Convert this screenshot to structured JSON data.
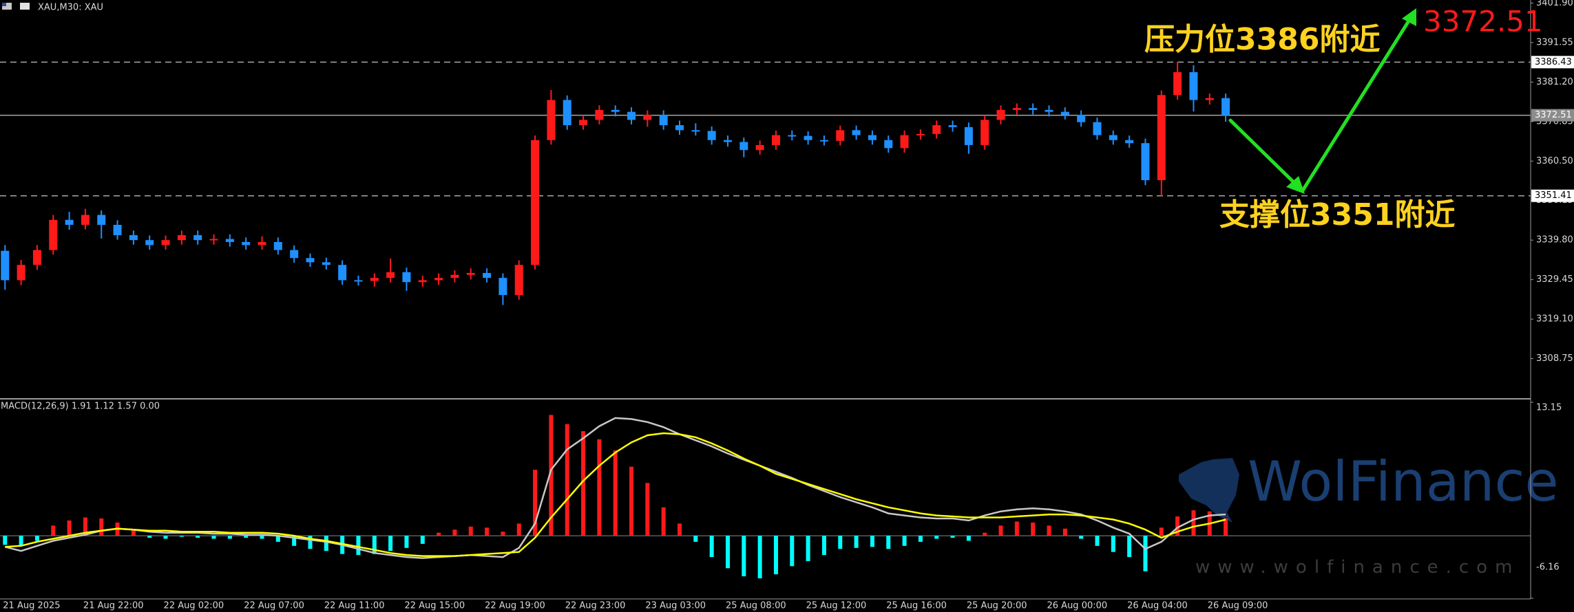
{
  "chart_data": [
    {
      "type": "candlestick",
      "title": "XAU,M30: XAU",
      "categories": [
        "21 Aug 2025",
        null,
        null,
        null,
        null,
        "21 Aug 22:00",
        null,
        null,
        null,
        null,
        "22 Aug 02:00",
        null,
        null,
        null,
        null,
        "22 Aug 07:00",
        null,
        null,
        null,
        null,
        "22 Aug 11:00",
        null,
        null,
        null,
        null,
        "22 Aug 15:00",
        null,
        null,
        null,
        null,
        "22 Aug 19:00",
        null,
        null,
        null,
        null,
        "22 Aug 23:00",
        null,
        null,
        null,
        null,
        "23 Aug 03:00",
        null,
        null,
        null,
        null,
        "25 Aug 08:00",
        null,
        null,
        null,
        null,
        "25 Aug 12:00",
        null,
        null,
        null,
        null,
        "25 Aug 16:00",
        null,
        null,
        null,
        null,
        "25 Aug 20:00",
        null,
        null,
        null,
        null,
        "26 Aug 00:00",
        null,
        null,
        null,
        null,
        "26 Aug 04:00",
        null,
        null,
        null,
        null,
        "26 Aug 09:00",
        null
      ],
      "open": [
        3337.0,
        3329.3,
        3333.3,
        3337.2,
        3345.1,
        3343.8,
        3346.4,
        3343.8,
        3341.1,
        3339.8,
        3338.5,
        3339.8,
        3341.1,
        3339.8,
        3340.1,
        3339.3,
        3338.5,
        3339.3,
        3337.2,
        3335.1,
        3334.0,
        3333.3,
        3329.3,
        3329.1,
        3329.9,
        3331.4,
        3328.8,
        3329.3,
        3329.9,
        3330.7,
        3331.2,
        3329.9,
        3325.4,
        3333.3,
        3366.0,
        3376.5,
        3369.9,
        3371.3,
        3373.9,
        3373.4,
        3371.3,
        3372.6,
        3369.9,
        3368.6,
        3368.4,
        3366.0,
        3365.5,
        3363.4,
        3364.7,
        3367.3,
        3367.1,
        3366.0,
        3365.8,
        3368.6,
        3367.3,
        3366.0,
        3363.9,
        3367.3,
        3367.6,
        3369.9,
        3369.4,
        3364.7,
        3371.3,
        3373.9,
        3374.4,
        3373.9,
        3373.4,
        3372.6,
        3370.7,
        3367.3,
        3366.0,
        3365.2,
        3355.5,
        3377.8,
        3383.8,
        3376.5,
        3377.0
      ],
      "high": [
        3338.5,
        3334.6,
        3338.5,
        3346.4,
        3347.2,
        3348.0,
        3347.6,
        3345.0,
        3342.3,
        3341.0,
        3341.0,
        3342.3,
        3342.3,
        3341.3,
        3341.3,
        3340.5,
        3340.8,
        3340.5,
        3338.4,
        3336.3,
        3335.2,
        3334.5,
        3330.5,
        3331.1,
        3335.0,
        3332.6,
        3330.5,
        3331.1,
        3331.9,
        3332.4,
        3332.4,
        3331.1,
        3334.5,
        3367.2,
        3379.1,
        3377.7,
        3372.5,
        3375.1,
        3375.1,
        3374.6,
        3373.8,
        3373.8,
        3371.1,
        3370.4,
        3369.6,
        3367.2,
        3366.7,
        3365.9,
        3368.5,
        3368.5,
        3368.3,
        3367.2,
        3369.8,
        3369.8,
        3368.5,
        3367.2,
        3368.5,
        3368.8,
        3371.1,
        3371.1,
        3370.6,
        3372.5,
        3375.1,
        3375.6,
        3375.6,
        3375.1,
        3374.6,
        3373.8,
        3371.9,
        3368.5,
        3367.2,
        3366.4,
        3379.0,
        3386.5,
        3385.6,
        3378.2,
        3378.2
      ],
      "low": [
        3326.8,
        3328.0,
        3332.0,
        3336.0,
        3342.5,
        3342.6,
        3340.2,
        3339.9,
        3338.6,
        3337.3,
        3337.3,
        3338.6,
        3338.6,
        3338.6,
        3338.1,
        3337.3,
        3337.3,
        3336.0,
        3333.9,
        3332.8,
        3332.1,
        3328.1,
        3327.9,
        3327.6,
        3328.7,
        3326.5,
        3327.6,
        3328.1,
        3328.7,
        3329.5,
        3328.7,
        3322.8,
        3324.2,
        3332.1,
        3364.8,
        3368.7,
        3368.7,
        3370.1,
        3372.2,
        3370.1,
        3369.5,
        3368.7,
        3367.4,
        3367.2,
        3364.8,
        3364.3,
        3361.5,
        3362.2,
        3363.5,
        3365.9,
        3364.8,
        3364.6,
        3364.6,
        3366.1,
        3364.8,
        3362.7,
        3362.7,
        3366.1,
        3366.4,
        3368.2,
        3362.4,
        3363.5,
        3370.1,
        3372.7,
        3372.7,
        3372.2,
        3371.4,
        3369.5,
        3366.1,
        3364.8,
        3364.0,
        3354.2,
        3351.4,
        3376.6,
        3373.5,
        3375.3,
        3370.8
      ],
      "close": [
        3329.3,
        3333.3,
        3337.2,
        3345.1,
        3343.8,
        3346.4,
        3343.8,
        3341.1,
        3339.8,
        3338.5,
        3339.8,
        3341.1,
        3339.8,
        3340.1,
        3339.3,
        3338.5,
        3339.3,
        3337.2,
        3335.1,
        3334.0,
        3333.3,
        3329.3,
        3329.1,
        3329.9,
        3331.4,
        3328.8,
        3329.3,
        3329.9,
        3330.7,
        3331.2,
        3329.9,
        3325.4,
        3333.3,
        3366.0,
        3376.5,
        3369.9,
        3371.3,
        3373.9,
        3373.4,
        3371.3,
        3372.6,
        3369.9,
        3368.6,
        3368.4,
        3366.0,
        3365.5,
        3363.4,
        3364.7,
        3367.3,
        3367.1,
        3366.0,
        3365.8,
        3368.6,
        3367.3,
        3366.0,
        3363.9,
        3367.3,
        3367.6,
        3369.9,
        3369.4,
        3364.7,
        3371.3,
        3373.9,
        3374.4,
        3373.9,
        3373.4,
        3372.6,
        3370.7,
        3367.3,
        3366.0,
        3365.2,
        3355.5,
        3377.8,
        3383.8,
        3376.5,
        3377.0,
        3372.5
      ],
      "up_color": "#ff1a1a",
      "down_color": "#1e90ff",
      "ylim": [
        3298.4,
        3402.7
      ],
      "yticks": [
        {
          "value": 3401.9,
          "label": "3401.90"
        },
        3391.55,
        {
          "value": 3381.2,
          "label": "3381.20"
        },
        3370.85,
        {
          "value": 3360.5,
          "label": "3360.50"
        },
        3350.15,
        {
          "value": 3339.8,
          "label": "3339.80"
        },
        3329.45,
        {
          "value": 3319.1,
          "label": "3319.10"
        },
        3308.75
      ],
      "hlines": [
        {
          "value": 3386.43,
          "style": "dashed"
        },
        {
          "value": 3372.51,
          "style": "solid"
        },
        {
          "value": 3351.41,
          "style": "dashed"
        }
      ],
      "annotations": [
        {
          "text": "压力位3386附近",
          "color": "#ffd21f"
        },
        {
          "text": "支撑位3351附近",
          "color": "#ffd21f"
        },
        {
          "text": "3372.51",
          "color": "#ff1a1a"
        }
      ]
    },
    {
      "type": "macd",
      "title": "MACD(12,26,9) 1.91 1.12 1.57 0.00",
      "histogram": {
        "up_color": "#ff1a1a",
        "down_color": "#00ffff",
        "values": [
          -0.9,
          -1.0,
          -0.5,
          1.0,
          1.5,
          1.8,
          1.7,
          1.3,
          0.6,
          -0.2,
          -0.3,
          -0.1,
          -0.2,
          -0.3,
          -0.3,
          -0.2,
          -0.3,
          -0.6,
          -1.0,
          -1.3,
          -1.5,
          -1.8,
          -1.9,
          -1.8,
          -1.5,
          -1.2,
          -0.8,
          0.3,
          0.6,
          0.9,
          0.8,
          0.4,
          1.2,
          6.5,
          11.9,
          11.0,
          10.3,
          9.5,
          8.4,
          6.8,
          5.2,
          2.8,
          1.2,
          -0.6,
          -2.1,
          -3.2,
          -4.0,
          -4.2,
          -3.8,
          -3.0,
          -2.5,
          -1.9,
          -1.3,
          -1.2,
          -1.1,
          -1.3,
          -1.0,
          -0.6,
          -0.3,
          -0.2,
          -0.5,
          0.3,
          1.0,
          1.4,
          1.3,
          1.0,
          0.7,
          -0.3,
          -1.0,
          -1.6,
          -2.1,
          -3.5,
          0.8,
          1.9,
          2.5,
          2.4,
          1.7
        ]
      },
      "series": [
        {
          "color": "#c8c8c8",
          "values": [
            -1.1,
            -1.5,
            -1.0,
            -0.5,
            -0.2,
            0.1,
            0.5,
            0.7,
            0.6,
            0.4,
            0.3,
            0.3,
            0.3,
            0.2,
            0.2,
            0.1,
            0.1,
            0.0,
            -0.2,
            -0.4,
            -0.6,
            -0.9,
            -1.3,
            -1.7,
            -1.9,
            -2.1,
            -2.2,
            -2.1,
            -2.0,
            -1.9,
            -2.0,
            -2.1,
            -1.2,
            1.2,
            6.5,
            8.5,
            9.6,
            10.8,
            11.6,
            11.5,
            11.2,
            10.7,
            10.0,
            9.4,
            8.8,
            8.1,
            7.5,
            6.9,
            6.3,
            5.7,
            5.0,
            4.4,
            3.8,
            3.3,
            2.8,
            2.2,
            2.0,
            1.8,
            1.7,
            1.7,
            1.5,
            2.0,
            2.4,
            2.6,
            2.7,
            2.6,
            2.4,
            2.1,
            1.5,
            0.8,
            0.2,
            -1.3,
            -0.6,
            0.8,
            1.6,
            2.0,
            2.1
          ]
        },
        {
          "color": "#ffff00",
          "values": [
            -1.1,
            -1.0,
            -0.6,
            -0.3,
            0.0,
            0.3,
            0.5,
            0.7,
            0.6,
            0.5,
            0.5,
            0.4,
            0.4,
            0.4,
            0.3,
            0.3,
            0.3,
            0.2,
            0.0,
            -0.3,
            -0.5,
            -0.8,
            -1.1,
            -1.4,
            -1.7,
            -1.9,
            -2.0,
            -2.0,
            -2.0,
            -1.9,
            -1.8,
            -1.7,
            -1.6,
            -0.2,
            1.8,
            3.6,
            5.4,
            6.9,
            8.2,
            9.2,
            9.9,
            10.1,
            10.0,
            9.7,
            9.1,
            8.4,
            7.6,
            6.9,
            6.1,
            5.6,
            5.1,
            4.6,
            4.1,
            3.6,
            3.2,
            2.8,
            2.5,
            2.2,
            2.0,
            1.9,
            1.8,
            1.8,
            1.8,
            1.9,
            2.0,
            2.1,
            2.1,
            2.0,
            1.8,
            1.6,
            1.2,
            0.6,
            -0.2,
            0.4,
            0.9,
            1.2,
            1.6
          ]
        }
      ],
      "ylim": [
        -6.16,
        13.15
      ],
      "yticks": [
        13.15,
        -6.16
      ]
    }
  ],
  "watermark": {
    "title": "WolFinance",
    "url": "www.wolfinance.com"
  }
}
